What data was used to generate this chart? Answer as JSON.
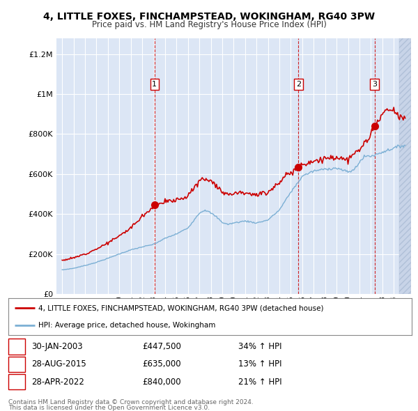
{
  "title": "4, LITTLE FOXES, FINCHAMPSTEAD, WOKINGHAM, RG40 3PW",
  "subtitle": "Price paid vs. HM Land Registry's House Price Index (HPI)",
  "legend_line1": "4, LITTLE FOXES, FINCHAMPSTEAD, WOKINGHAM, RG40 3PW (detached house)",
  "legend_line2": "HPI: Average price, detached house, Wokingham",
  "footer1": "Contains HM Land Registry data © Crown copyright and database right 2024.",
  "footer2": "This data is licensed under the Open Government Licence v3.0.",
  "table_rows": [
    {
      "num": "1",
      "date": "30-JAN-2003",
      "price": "£447,500",
      "change": "34% ↑ HPI"
    },
    {
      "num": "2",
      "date": "28-AUG-2015",
      "price": "£635,000",
      "change": "13% ↑ HPI"
    },
    {
      "num": "3",
      "date": "28-APR-2022",
      "price": "£840,000",
      "change": "21% ↑ HPI"
    }
  ],
  "sale_markers": [
    {
      "year": 2003.08,
      "price": 447500,
      "label": "1"
    },
    {
      "year": 2015.66,
      "price": 635000,
      "label": "2"
    },
    {
      "year": 2022.33,
      "price": 840000,
      "label": "3"
    }
  ],
  "vline_years": [
    2003.08,
    2015.66,
    2022.33
  ],
  "ylim": [
    0,
    1280000
  ],
  "xlim_start": 1994.5,
  "xlim_end": 2025.5,
  "plot_bg_color": "#dce6f5",
  "grid_color": "#ffffff",
  "red_color": "#cc0000",
  "blue_color": "#7bafd4",
  "hatch_color": "#c8d4e8",
  "hatch_start": 2024.5
}
